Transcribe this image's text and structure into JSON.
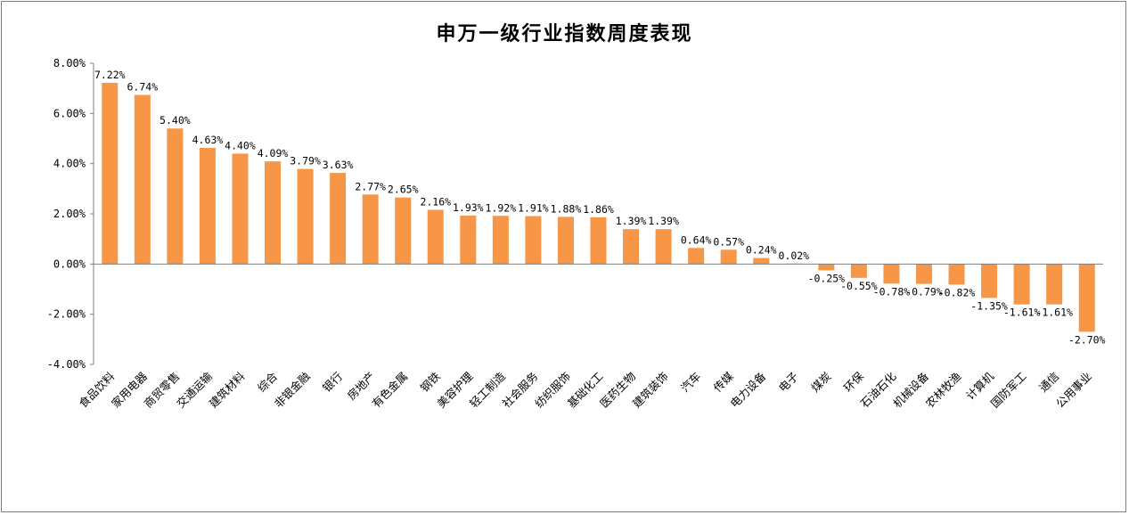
{
  "chart_data": {
    "type": "bar",
    "title": "申万一级行业指数周度表现",
    "xlabel": "",
    "ylabel": "",
    "ylim": [
      -4,
      8
    ],
    "yticks": [
      8,
      6,
      4,
      2,
      0,
      -2,
      -4
    ],
    "ytick_labels": [
      "8.00%",
      "6.00%",
      "4.00%",
      "2.00%",
      "0.00%",
      "-2.00%",
      "-4.00%"
    ],
    "grid": false,
    "legend": "none",
    "bar_color": "#F79646",
    "categories": [
      "食品饮料",
      "家用电器",
      "商贸零售",
      "交通运输",
      "建筑材料",
      "综合",
      "非银金融",
      "银行",
      "房地产",
      "有色金属",
      "钢铁",
      "美容护理",
      "轻工制造",
      "社会服务",
      "纺织服饰",
      "基础化工",
      "医药生物",
      "建筑装饰",
      "汽车",
      "传媒",
      "电力设备",
      "电子",
      "煤炭",
      "环保",
      "石油石化",
      "机械设备",
      "农林牧渔",
      "计算机",
      "国防军工",
      "通信",
      "公用事业"
    ],
    "values": [
      7.22,
      6.74,
      5.4,
      4.63,
      4.4,
      4.09,
      3.79,
      3.63,
      2.77,
      2.65,
      2.16,
      1.93,
      1.92,
      1.91,
      1.88,
      1.86,
      1.39,
      1.39,
      0.64,
      0.57,
      0.24,
      0.02,
      -0.25,
      -0.55,
      -0.78,
      -0.79,
      -0.82,
      -1.35,
      -1.61,
      -1.61,
      -2.7
    ],
    "data_labels": [
      "7.22%",
      "6.74%",
      "5.40%",
      "4.63%",
      "4.40%",
      "4.09%",
      "3.79%",
      "3.63%",
      "2.77%",
      "2.65%",
      "2.16%",
      "1.93%",
      "1.92%",
      "1.91%",
      "1.88%",
      "1.86%",
      "1.39%",
      "1.39%",
      "0.64%",
      "0.57%",
      "0.24%",
      "0.02%",
      "-0.25%",
      "-0.55%",
      "-0.78%",
      "-0.79%",
      "-0.82%",
      "-1.35%",
      "-1.61%",
      "-1.61%",
      "-2.70%"
    ]
  }
}
